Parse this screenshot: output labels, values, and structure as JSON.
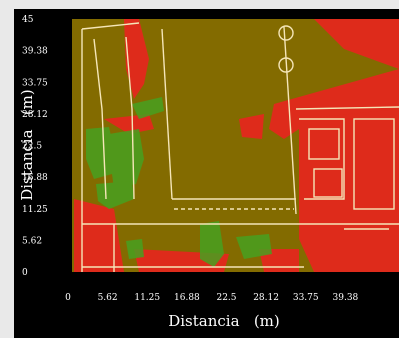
{
  "chart_data": {
    "type": "heatmap",
    "title": "",
    "xlabel": "Distancia   (m)",
    "ylabel": "Distancia   (m)",
    "xlim": [
      0,
      45
    ],
    "ylim": [
      0,
      45
    ],
    "x_ticks": [
      "0",
      "5.62",
      "11.25",
      "16.88",
      "22.5",
      "28.12",
      "33.75",
      "39.38"
    ],
    "y_ticks": [
      "45",
      "39.38",
      "33.75",
      "28.12",
      "22.5",
      "16.88",
      "11.25",
      "5.62",
      "0"
    ],
    "grid": false,
    "legend": "none",
    "colors": {
      "background": "#836b00",
      "high_level": "#ef2020",
      "mid_level": "#48a020",
      "floor_plan": "#f5e6b8",
      "frame": "#000000"
    }
  }
}
